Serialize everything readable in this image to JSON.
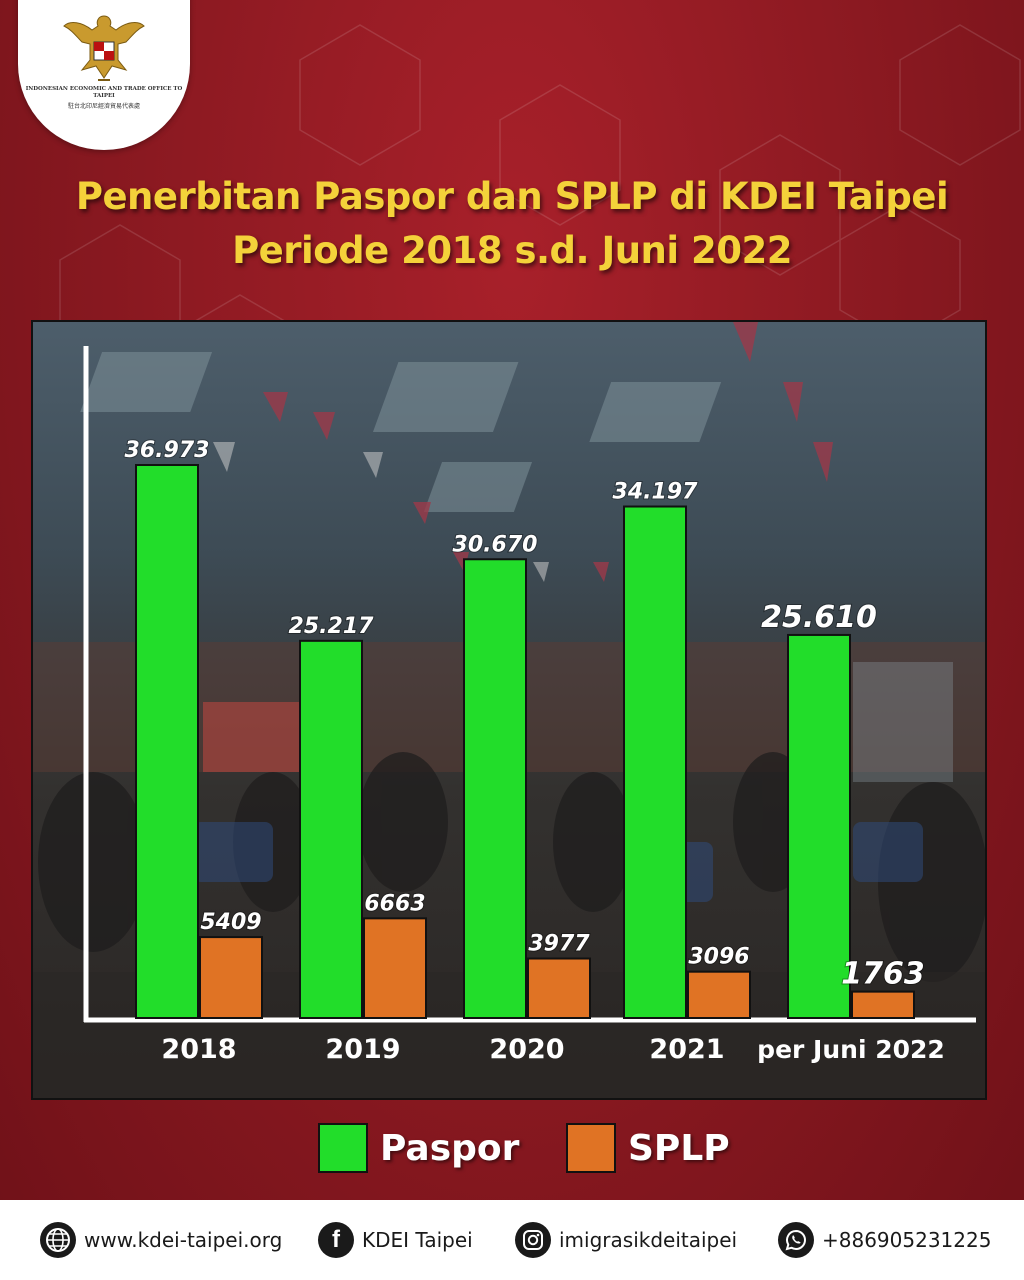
{
  "header": {
    "logo_en": "INDONESIAN ECONOMIC AND TRADE OFFICE TO TAIPEI",
    "logo_zh": "駐台北印尼經濟貿易代表處"
  },
  "chart_data": {
    "type": "bar",
    "title": "Penerbitan Paspor dan SPLP di KDEI Taipei",
    "subtitle": "Periode 2018 s.d. Juni 2022",
    "categories": [
      "2018",
      "2019",
      "2020",
      "2021",
      "per Juni 2022"
    ],
    "series": [
      {
        "name": "Paspor",
        "color": "#22dd2a",
        "values": [
          36973,
          25217,
          30670,
          34197,
          25610
        ],
        "labels": [
          "36.973",
          "25.217",
          "30.670",
          "34.197",
          "25.610"
        ]
      },
      {
        "name": "SPLP",
        "color": "#e07324",
        "values": [
          5409,
          6663,
          3977,
          3096,
          1763
        ],
        "labels": [
          "5409",
          "6663",
          "3977",
          "3096",
          "1763"
        ]
      }
    ],
    "xlabel": "",
    "ylabel": "",
    "ylim": [
      0,
      40000
    ],
    "grid": false,
    "legend_position": "bottom"
  },
  "footer": {
    "website": "www.kdei-taipei.org",
    "facebook": "KDEI Taipei",
    "instagram": "imigrasikdeitaipei",
    "whatsapp": "+886905231225"
  }
}
